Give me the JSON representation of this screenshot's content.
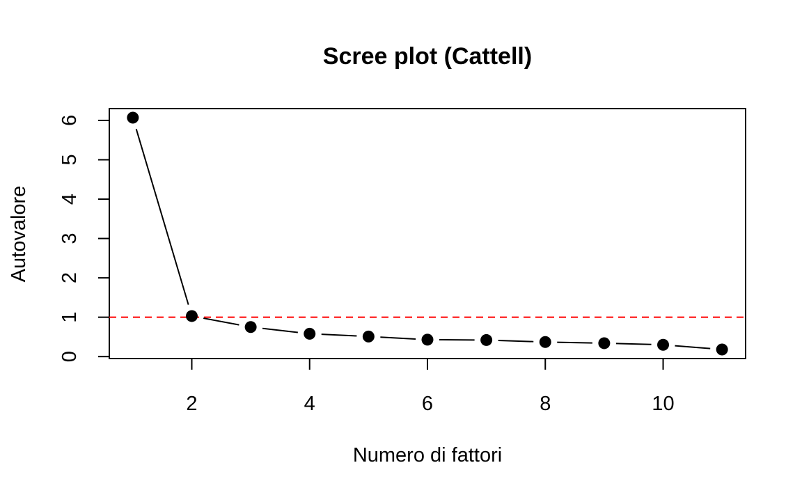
{
  "chart_data": {
    "type": "line",
    "title": "Scree plot (Cattell)",
    "xlabel": "Numero di fattori",
    "ylabel": "Autovalore",
    "x": [
      1,
      2,
      3,
      4,
      5,
      6,
      7,
      8,
      9,
      10,
      11
    ],
    "series": [
      {
        "values": [
          6.07,
          1.03,
          0.75,
          0.58,
          0.51,
          0.43,
          0.42,
          0.37,
          0.34,
          0.3,
          0.18
        ]
      }
    ],
    "reference_line": {
      "y": 1,
      "color": "#ff0000",
      "style": "dashed"
    },
    "xlim": [
      0.6,
      11.4
    ],
    "ylim": [
      -0.05,
      6.3
    ],
    "xticks": [
      "2",
      "4",
      "6",
      "8",
      "10"
    ],
    "yticks": [
      "0",
      "1",
      "2",
      "3",
      "4",
      "5",
      "6"
    ],
    "grid": false,
    "marker": "filled-circle",
    "line_color": "#000000"
  }
}
